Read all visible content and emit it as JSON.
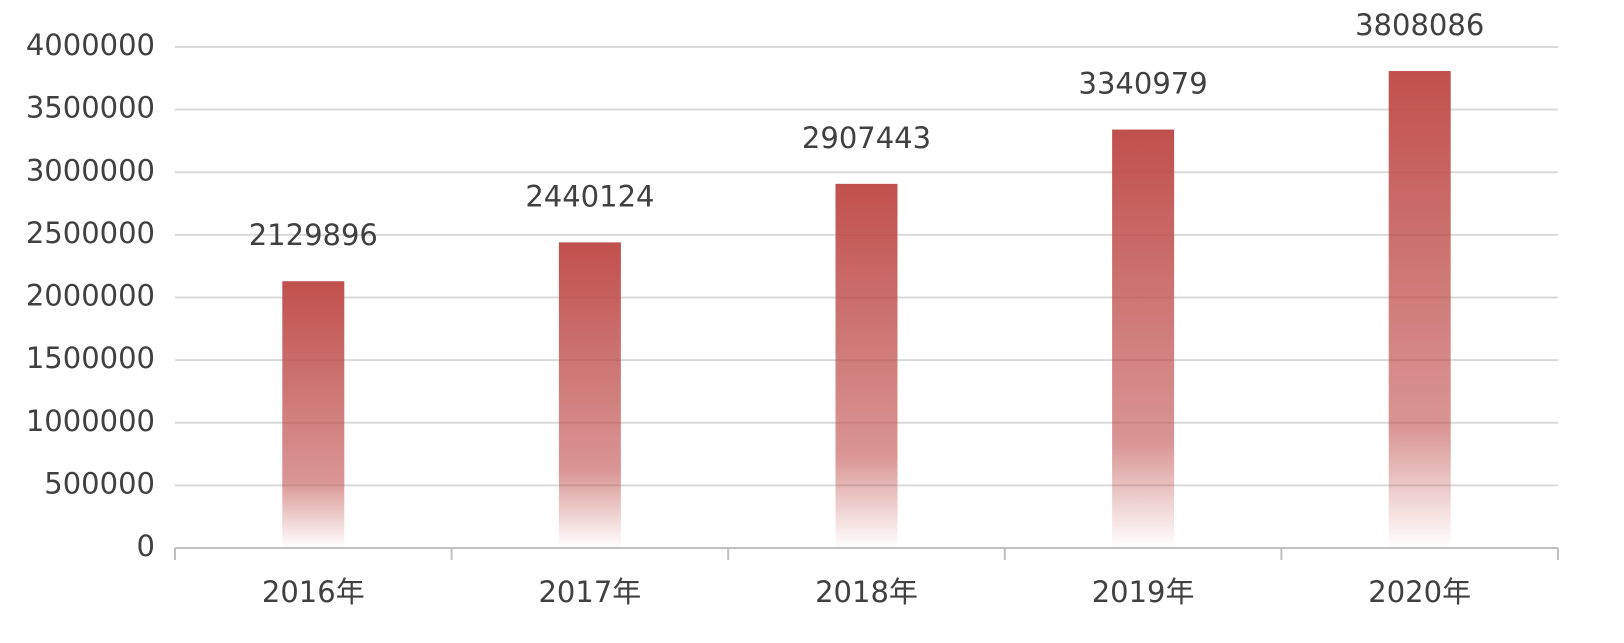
{
  "chart_data": {
    "type": "bar",
    "categories": [
      "2016年",
      "2017年",
      "2018年",
      "2019年",
      "2020年"
    ],
    "values": [
      2129896,
      2440124,
      2907443,
      3340979,
      3808086
    ],
    "color": "#c0504d",
    "ylim": [
      0,
      4000000
    ],
    "yticks": [
      0,
      500000,
      1000000,
      1500000,
      2000000,
      2500000,
      3000000,
      3500000,
      4000000
    ],
    "grid": true
  }
}
